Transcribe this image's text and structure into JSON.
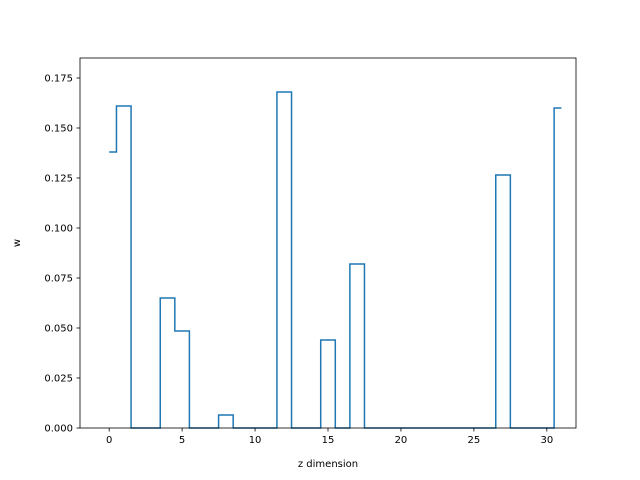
{
  "chart_data": {
    "type": "line",
    "drawstyle": "steps-mid",
    "title": "",
    "xlabel": "z dimension",
    "ylabel": "w",
    "xlim": [
      -2,
      32
    ],
    "ylim": [
      0,
      0.185
    ],
    "xticks": [
      0,
      5,
      10,
      15,
      20,
      25,
      30
    ],
    "xtick_labels": [
      "0",
      "5",
      "10",
      "15",
      "20",
      "25",
      "30"
    ],
    "yticks": [
      0,
      0.025,
      0.05,
      0.075,
      0.1,
      0.125,
      0.15,
      0.175
    ],
    "ytick_labels": [
      "0.000",
      "0.025",
      "0.050",
      "0.075",
      "0.100",
      "0.125",
      "0.150",
      "0.175"
    ],
    "grid": false,
    "color": "#1f77b4",
    "x": [
      0,
      1,
      2,
      3,
      4,
      5,
      6,
      7,
      8,
      9,
      10,
      11,
      12,
      13,
      14,
      15,
      16,
      17,
      18,
      19,
      20,
      21,
      22,
      23,
      24,
      25,
      26,
      27,
      28,
      29,
      30,
      31
    ],
    "values": [
      0.138,
      0.161,
      0,
      0,
      0.065,
      0.0485,
      0,
      0,
      0.0065,
      0,
      0,
      0,
      0.168,
      0,
      0,
      0.044,
      0,
      0.082,
      0,
      0,
      0,
      0,
      0,
      0,
      0,
      0,
      0,
      0.1265,
      0,
      0,
      0,
      0.16
    ]
  }
}
